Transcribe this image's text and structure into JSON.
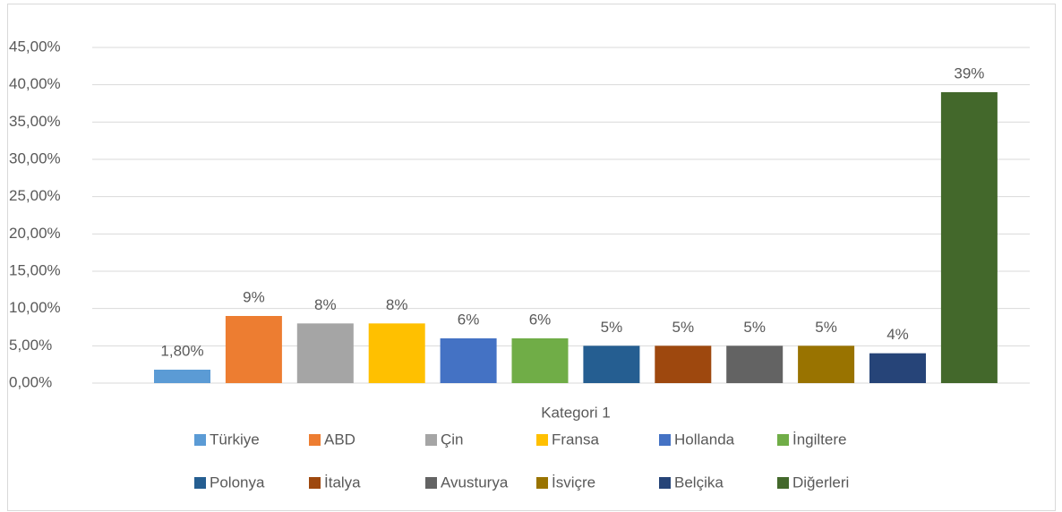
{
  "chart_data": {
    "type": "bar",
    "categories": [
      "Kategori 1"
    ],
    "series": [
      {
        "name": "Türkiye",
        "color": "#5b9bd5",
        "values": [
          1.8
        ],
        "value_labels": [
          "1,80%"
        ]
      },
      {
        "name": "ABD",
        "color": "#ed7d31",
        "values": [
          9
        ],
        "value_labels": [
          "9%"
        ]
      },
      {
        "name": "Çin",
        "color": "#a5a5a5",
        "values": [
          8
        ],
        "value_labels": [
          "8%"
        ]
      },
      {
        "name": "Fransa",
        "color": "#ffc000",
        "values": [
          8
        ],
        "value_labels": [
          "8%"
        ]
      },
      {
        "name": "Hollanda",
        "color": "#4472c4",
        "values": [
          6
        ],
        "value_labels": [
          "6%"
        ]
      },
      {
        "name": "İngiltere",
        "color": "#70ad47",
        "values": [
          6
        ],
        "value_labels": [
          "6%"
        ]
      },
      {
        "name": "Polonya",
        "color": "#255e91",
        "values": [
          5
        ],
        "value_labels": [
          "5%"
        ]
      },
      {
        "name": "İtalya",
        "color": "#9e480e",
        "values": [
          5
        ],
        "value_labels": [
          "5%"
        ]
      },
      {
        "name": "Avusturya",
        "color": "#636363",
        "values": [
          5
        ],
        "value_labels": [
          "5%"
        ]
      },
      {
        "name": "İsviçre",
        "color": "#997300",
        "values": [
          5
        ],
        "value_labels": [
          "5%"
        ]
      },
      {
        "name": "Belçika",
        "color": "#264478",
        "values": [
          4
        ],
        "value_labels": [
          "4%"
        ]
      },
      {
        "name": "Diğerleri",
        "color": "#43682b",
        "values": [
          39
        ],
        "value_labels": [
          "39%"
        ]
      }
    ],
    "ylim": [
      0,
      45
    ],
    "yticks": [
      {
        "value": 0,
        "label": "0,00%"
      },
      {
        "value": 5,
        "label": "5,00%"
      },
      {
        "value": 10,
        "label": "10,00%"
      },
      {
        "value": 15,
        "label": "15,00%"
      },
      {
        "value": 20,
        "label": "20,00%"
      },
      {
        "value": 25,
        "label": "25,00%"
      },
      {
        "value": 30,
        "label": "30,00%"
      },
      {
        "value": 35,
        "label": "35,00%"
      },
      {
        "value": 40,
        "label": "40,00%"
      },
      {
        "value": 45,
        "label": "45,00%"
      }
    ],
    "grid": true,
    "legend": "bottom"
  }
}
